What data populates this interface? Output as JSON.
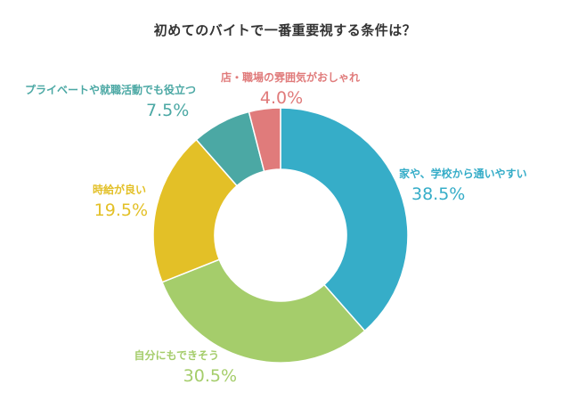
{
  "chart_data": {
    "type": "pie",
    "title": "初めてのバイトで一番重要視する条件は？",
    "categories": [
      "家や、学校から通いやすい",
      "自分にもできそう",
      "時給が良い",
      "プライベートや就職活動でも役立つ",
      "店・職場の雰囲気がおしゃれ"
    ],
    "values": [
      38.5,
      30.5,
      19.5,
      7.5,
      4.0
    ],
    "value_labels": [
      "38.5%",
      "30.5%",
      "19.5%",
      "7.5%",
      "4.0%"
    ],
    "colors": [
      "#36adc8",
      "#a5cd6b",
      "#e3c027",
      "#4ba8a4",
      "#e07b7b"
    ],
    "donut": true,
    "legend": "none"
  }
}
